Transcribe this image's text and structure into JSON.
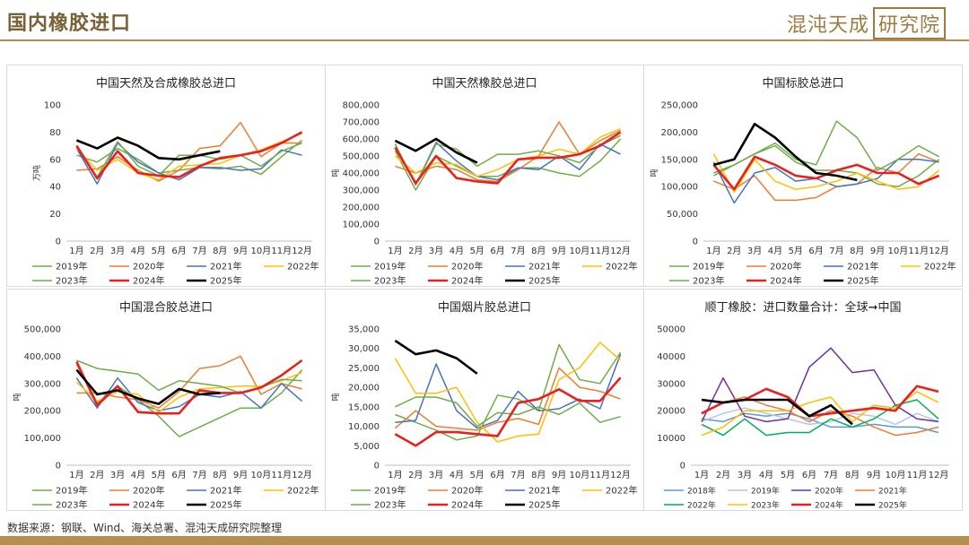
{
  "header": {
    "title": "国内橡胶进口",
    "logo_main": "混沌天成",
    "logo_box": "研究院"
  },
  "footer": {
    "source": "数据来源：钢联、Wind、海关总署、混沌天成研究院整理"
  },
  "colors": {
    "accent": "#b58e52",
    "2018年": "#5b9bd5",
    "2019年": "#70ad47",
    "2020年": "#ed7d31",
    "2021年": "#4472c4",
    "2022年": "#ffc000",
    "2023年": "#70ad47",
    "2024年": "#e8201e",
    "2025年": "#000000",
    "2019年_p6": "#b4c7e7",
    "2020年_p6": "#7030a0",
    "2021年_p6": "#ed7d31",
    "2022年_p6": "#00b050",
    "2023年_p6": "#ffc000"
  },
  "chart_data": [
    {
      "type": "line",
      "title": "中国天然及合成橡胶总进口",
      "ylabel": "万吨",
      "ylim": [
        0,
        100
      ],
      "yticks": [
        "0",
        "20",
        "40",
        "60",
        "80",
        "100"
      ],
      "categories": [
        "1月",
        "2月",
        "3月",
        "4月",
        "5月",
        "6月",
        "7月",
        "8月",
        "9月",
        "10月",
        "11月",
        "12月"
      ],
      "legend": [
        "2019年",
        "2020年",
        "2021年",
        "2022年",
        "2023年",
        "2024年",
        "2025年"
      ],
      "series": [
        {
          "name": "2019年",
          "values": [
            63,
            58,
            68,
            60,
            50,
            52,
            54,
            53,
            55,
            49,
            62,
            74
          ]
        },
        {
          "name": "2020年",
          "values": [
            52,
            53,
            62,
            52,
            44,
            52,
            68,
            70,
            87,
            62,
            72,
            72
          ]
        },
        {
          "name": "2021年",
          "values": [
            68,
            42,
            72,
            58,
            50,
            45,
            54,
            54,
            52,
            53,
            67,
            63
          ]
        },
        {
          "name": "2022年",
          "values": [
            68,
            52,
            60,
            50,
            45,
            55,
            56,
            57,
            63,
            67,
            73,
            79
          ]
        },
        {
          "name": "2023年",
          "values": [
            69,
            47,
            73,
            55,
            48,
            63,
            63,
            60,
            63,
            55,
            66,
            72
          ]
        },
        {
          "name": "2024年",
          "values": [
            70,
            46,
            66,
            50,
            48,
            47,
            55,
            61,
            63,
            66,
            72,
            80
          ]
        },
        {
          "name": "2025年",
          "values": [
            74,
            68,
            76,
            70,
            61,
            60,
            63,
            66,
            null,
            null,
            null,
            null
          ]
        }
      ]
    },
    {
      "type": "line",
      "title": "中国天然橡胶总进口",
      "ylabel": "吨",
      "ylim": [
        0,
        800000
      ],
      "yticks": [
        "0",
        "100,000",
        "200,000",
        "300,000",
        "400,000",
        "500,000",
        "600,000",
        "700,000",
        "800,000"
      ],
      "categories": [
        "1月",
        "2月",
        "3月",
        "4月",
        "5月",
        "6月",
        "7月",
        "8月",
        "9月",
        "10月",
        "11月",
        "12月"
      ],
      "legend": [
        "2019年",
        "2020年",
        "2021年",
        "2022年",
        "2023年",
        "2024年",
        "2025年"
      ],
      "series": [
        {
          "name": "2019年",
          "values": [
            530000,
            300000,
            500000,
            440000,
            380000,
            380000,
            430000,
            430000,
            400000,
            380000,
            470000,
            600000
          ]
        },
        {
          "name": "2020年",
          "values": [
            440000,
            400000,
            440000,
            420000,
            360000,
            350000,
            420000,
            500000,
            700000,
            510000,
            590000,
            650000
          ]
        },
        {
          "name": "2021年",
          "values": [
            570000,
            330000,
            580000,
            470000,
            380000,
            360000,
            430000,
            420000,
            500000,
            420000,
            570000,
            510000
          ]
        },
        {
          "name": "2022年",
          "values": [
            500000,
            400000,
            460000,
            450000,
            380000,
            420000,
            480000,
            500000,
            540000,
            510000,
            610000,
            660000
          ]
        },
        {
          "name": "2023年",
          "values": [
            570000,
            330000,
            570000,
            540000,
            440000,
            510000,
            510000,
            530000,
            500000,
            460000,
            560000,
            620000
          ]
        },
        {
          "name": "2024年",
          "values": [
            550000,
            340000,
            500000,
            370000,
            350000,
            340000,
            480000,
            490000,
            490000,
            510000,
            560000,
            640000
          ]
        },
        {
          "name": "2025年",
          "values": [
            590000,
            530000,
            600000,
            520000,
            460000,
            null,
            null,
            null,
            null,
            null,
            null,
            null
          ]
        }
      ]
    },
    {
      "type": "line",
      "title": "中国标胶总进口",
      "ylabel": "吨",
      "ylim": [
        0,
        250000
      ],
      "yticks": [
        "0",
        "50,000",
        "100,000",
        "150,000",
        "200,000",
        "250,000"
      ],
      "categories": [
        "1月",
        "2月",
        "3月",
        "4月",
        "5月",
        "6月",
        "7月",
        "8月",
        "9月",
        "10月",
        "11月",
        "12月"
      ],
      "legend": [
        "2019年",
        "2020年",
        "2021年",
        "2022年",
        "2023年",
        "2024年",
        "2025年"
      ],
      "series": [
        {
          "name": "2019年",
          "values": [
            120000,
            140000,
            160000,
            175000,
            145000,
            130000,
            130000,
            125000,
            105000,
            100000,
            120000,
            150000
          ]
        },
        {
          "name": "2020年",
          "values": [
            110000,
            95000,
            120000,
            75000,
            75000,
            80000,
            100000,
            105000,
            135000,
            125000,
            160000,
            145000
          ]
        },
        {
          "name": "2021年",
          "values": [
            145000,
            70000,
            125000,
            135000,
            110000,
            115000,
            100000,
            105000,
            115000,
            150000,
            150000,
            145000
          ]
        },
        {
          "name": "2022年",
          "values": [
            160000,
            90000,
            150000,
            110000,
            95000,
            100000,
            110000,
            125000,
            110000,
            95000,
            100000,
            130000
          ]
        },
        {
          "name": "2023年",
          "values": [
            125000,
            140000,
            160000,
            180000,
            150000,
            140000,
            220000,
            190000,
            130000,
            150000,
            175000,
            155000
          ]
        },
        {
          "name": "2024年",
          "values": [
            140000,
            95000,
            155000,
            140000,
            120000,
            115000,
            130000,
            140000,
            125000,
            125000,
            105000,
            120000
          ]
        },
        {
          "name": "2025年",
          "values": [
            140000,
            150000,
            215000,
            190000,
            155000,
            125000,
            120000,
            112000,
            null,
            null,
            null,
            null
          ]
        }
      ]
    },
    {
      "type": "line",
      "title": "中国混合胶总进口",
      "ylabel": "吨",
      "ylim": [
        0,
        500000
      ],
      "yticks": [
        "0",
        "100,000",
        "200,000",
        "300,000",
        "400,000",
        "500,000"
      ],
      "categories": [
        "1月",
        "2月",
        "3月",
        "4月",
        "5月",
        "6月",
        "7月",
        "8月",
        "9月",
        "10月",
        "11月",
        "12月"
      ],
      "legend": [
        "2019年",
        "2020年",
        "2021年",
        "2022年",
        "2023年",
        "2024年",
        "2025年"
      ],
      "series": [
        {
          "name": "2019年",
          "values": [
            370000,
            230000,
            290000,
            240000,
            180000,
            105000,
            140000,
            175000,
            210000,
            210000,
            265000,
            350000
          ]
        },
        {
          "name": "2020年",
          "values": [
            265000,
            265000,
            250000,
            240000,
            210000,
            270000,
            355000,
            365000,
            400000,
            260000,
            300000,
            280000
          ]
        },
        {
          "name": "2021年",
          "values": [
            320000,
            210000,
            320000,
            230000,
            200000,
            215000,
            260000,
            250000,
            270000,
            210000,
            300000,
            235000
          ]
        },
        {
          "name": "2022年",
          "values": [
            305000,
            235000,
            270000,
            260000,
            195000,
            250000,
            280000,
            285000,
            290000,
            290000,
            310000,
            340000
          ]
        },
        {
          "name": "2023年",
          "values": [
            385000,
            355000,
            345000,
            335000,
            275000,
            310000,
            300000,
            290000,
            265000,
            285000,
            315000,
            310000
          ]
        },
        {
          "name": "2024年",
          "values": [
            380000,
            220000,
            290000,
            195000,
            190000,
            190000,
            275000,
            265000,
            265000,
            285000,
            330000,
            385000
          ]
        },
        {
          "name": "2025年",
          "values": [
            350000,
            260000,
            275000,
            245000,
            225000,
            280000,
            260000,
            265000,
            null,
            null,
            null,
            null
          ]
        }
      ]
    },
    {
      "type": "line",
      "title": "中国烟片胶总进口",
      "ylabel": "吨",
      "ylim": [
        0,
        35000
      ],
      "yticks": [
        "0",
        "5,000",
        "10,000",
        "15,000",
        "20,000",
        "25,000",
        "30,000",
        "35,000"
      ],
      "categories": [
        "1月",
        "2月",
        "3月",
        "4月",
        "5月",
        "6月",
        "7月",
        "8月",
        "9月",
        "10月",
        "11月",
        "12月"
      ],
      "legend": [
        "2019年",
        "2020年",
        "2021年",
        "2022年",
        "2023年",
        "2024年",
        "2025年"
      ],
      "series": [
        {
          "name": "2019年",
          "values": [
            13000,
            11000,
            9000,
            6500,
            7500,
            18000,
            17000,
            14000,
            31000,
            22000,
            21000,
            29000
          ]
        },
        {
          "name": "2020年",
          "values": [
            9500,
            14000,
            10000,
            9500,
            9000,
            11000,
            12000,
            10500,
            25000,
            20000,
            19000,
            17000
          ]
        },
        {
          "name": "2021年",
          "values": [
            11000,
            11500,
            26000,
            14000,
            9500,
            11500,
            19000,
            14000,
            14500,
            17000,
            14500,
            28500
          ]
        },
        {
          "name": "2022年",
          "values": [
            27500,
            18500,
            18500,
            20000,
            11000,
            6000,
            7500,
            8000,
            22000,
            25000,
            31500,
            27000
          ]
        },
        {
          "name": "2023年",
          "values": [
            15000,
            17500,
            17500,
            16000,
            10000,
            13500,
            13000,
            15000,
            13000,
            16000,
            11000,
            12500
          ]
        },
        {
          "name": "2024年",
          "values": [
            8000,
            5000,
            8500,
            8500,
            8000,
            7500,
            16000,
            17000,
            19500,
            16500,
            16500,
            22500
          ]
        },
        {
          "name": "2025年",
          "values": [
            32000,
            28500,
            29500,
            27500,
            23500,
            null,
            null,
            null,
            null,
            null,
            null,
            null
          ]
        }
      ]
    },
    {
      "type": "line",
      "title": "顺丁橡胶：进口数量合计：全球➞中国",
      "ylabel": "",
      "ylim": [
        0,
        50000
      ],
      "yticks": [
        "0",
        "10000",
        "20000",
        "30000",
        "40000",
        "50000"
      ],
      "categories": [
        "1月",
        "2月",
        "3月",
        "4月",
        "5月",
        "6月",
        "7月",
        "8月",
        "9月",
        "10月",
        "11月",
        "12月"
      ],
      "legend": [
        "2018年",
        "2019年",
        "2020年",
        "2021年",
        "2022年",
        "2023年",
        "2024年",
        "2025年"
      ],
      "series": [
        {
          "name": "2018年",
          "values": [
            17000,
            16000,
            19000,
            18000,
            19000,
            17000,
            14000,
            14000,
            15000,
            14000,
            14000,
            12000
          ],
          "color_key": "2018年"
        },
        {
          "name": "2019年",
          "values": [
            16000,
            19000,
            21000,
            19000,
            17000,
            15000,
            16000,
            19000,
            18000,
            15000,
            19000,
            16000
          ],
          "color_key": "2019年_p6"
        },
        {
          "name": "2020年",
          "values": [
            16000,
            32000,
            18000,
            16000,
            17000,
            36000,
            43000,
            34000,
            35000,
            22000,
            17000,
            16000
          ],
          "color_key": "2020年_p6"
        },
        {
          "name": "2021年",
          "values": [
            19000,
            23000,
            25000,
            22000,
            20000,
            16000,
            20000,
            18000,
            14000,
            11000,
            12000,
            14000
          ],
          "color_key": "2021年_p6"
        },
        {
          "name": "2022年",
          "values": [
            15000,
            11000,
            17000,
            11000,
            12000,
            12000,
            17000,
            14000,
            17000,
            22000,
            24000,
            17000
          ],
          "color_key": "2022年_p6"
        },
        {
          "name": "2023年",
          "values": [
            11000,
            14000,
            20000,
            20000,
            20000,
            23000,
            25000,
            16000,
            22000,
            21000,
            27000,
            23000
          ],
          "color_key": "2023年_p6"
        },
        {
          "name": "2024年",
          "values": [
            19000,
            23000,
            24000,
            28000,
            25000,
            18000,
            19000,
            20000,
            21000,
            20000,
            29000,
            27000
          ],
          "color_key": "2024年"
        },
        {
          "name": "2025年",
          "values": [
            24000,
            23000,
            24000,
            24000,
            24000,
            18000,
            22000,
            15000,
            null,
            null,
            null,
            null
          ],
          "color_key": "2025年"
        }
      ]
    }
  ]
}
